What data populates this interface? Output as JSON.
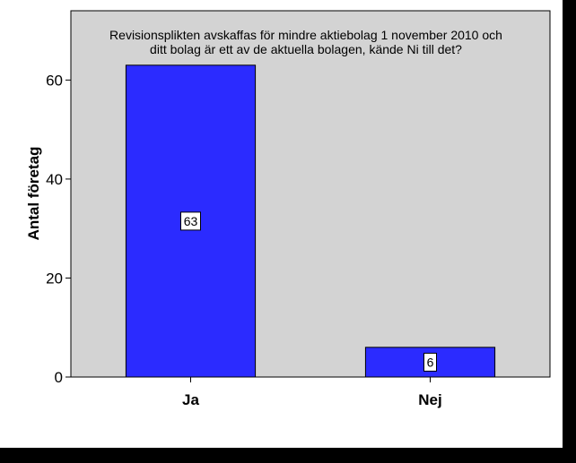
{
  "chart_data": {
    "type": "bar",
    "title_lines": [
      "Revisionsplikten avskaffas för mindre aktiebolag 1 november 2010 och",
      "ditt bolag är ett av de aktuella bolagen, kände Ni till det?"
    ],
    "categories": [
      "Ja",
      "Nej"
    ],
    "values": [
      63,
      6
    ],
    "data_labels": [
      "63",
      "6"
    ],
    "xlabel": "",
    "ylabel": "Antal företag",
    "ylim": [
      0,
      74
    ],
    "yticks": [
      0,
      20,
      40,
      60
    ],
    "ytick_labels": [
      "0",
      "20",
      "40",
      "60"
    ],
    "grid": false,
    "legend": "none",
    "colors": {
      "bar": "#2b2bff",
      "plot_background": "#d3d3d3",
      "frame": "#ffffff",
      "outer_background": "#000000"
    }
  }
}
